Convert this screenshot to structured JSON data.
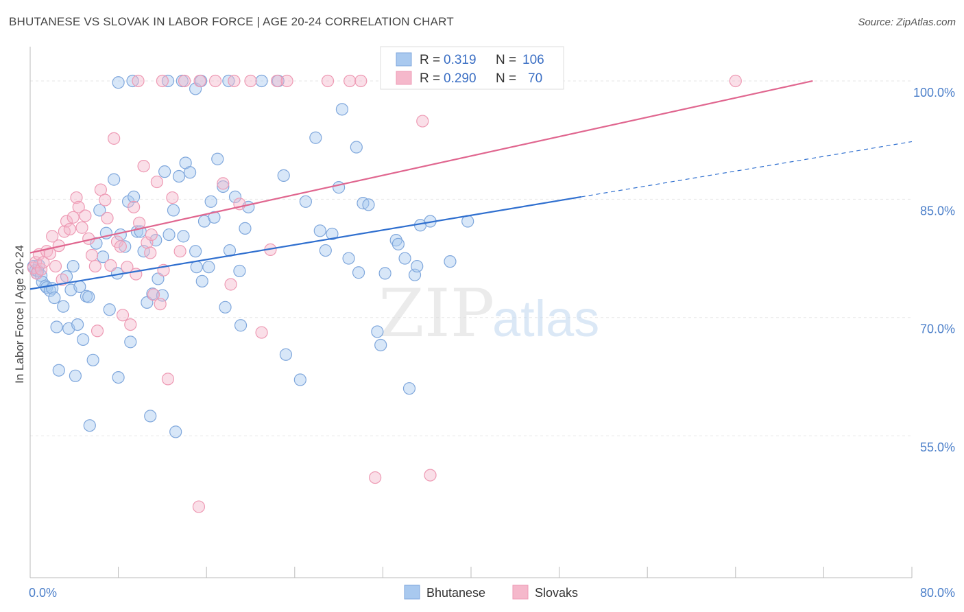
{
  "header": {
    "title": "BHUTANESE VS SLOVAK IN LABOR FORCE | AGE 20-24 CORRELATION CHART",
    "source": "Source: ZipAtlas.com"
  },
  "watermark": {
    "zip": "ZIP",
    "atlas": "atlas"
  },
  "legend_box": {
    "rows": [
      {
        "r_label": "R =",
        "r_value": "0.319",
        "n_label": "N =",
        "n_value": "106"
      },
      {
        "r_label": "R =",
        "r_value": "0.290",
        "n_label": "N =",
        "n_value": "70"
      }
    ]
  },
  "bottom_legend": {
    "items": [
      "Bhutanese",
      "Slovaks"
    ]
  },
  "colors": {
    "blue_fill": "#a9c9ef",
    "blue_stroke": "#7fa7dc",
    "blue_line": "#2f6fcf",
    "pink_fill": "#f5b8cb",
    "pink_stroke": "#ee9ab4",
    "pink_line": "#e0668f",
    "tick_text": "#4a7ec9",
    "grid": "#e6e6e6"
  },
  "chart_data": {
    "type": "scatter",
    "title": "BHUTANESE VS SLOVAK IN LABOR FORCE | AGE 20-24 CORRELATION CHART",
    "xlabel": "",
    "ylabel": "In Labor Force | Age 20-24",
    "xlim": [
      0,
      80
    ],
    "ylim": [
      37,
      104
    ],
    "x_tick_labels": [
      {
        "value": 0,
        "label": "0.0%"
      },
      {
        "value": 80,
        "label": "80.0%"
      }
    ],
    "y_tick_labels": [
      {
        "value": 100,
        "label": "100.0%"
      },
      {
        "value": 85,
        "label": "85.0%"
      },
      {
        "value": 70,
        "label": "70.0%"
      },
      {
        "value": 55,
        "label": "55.0%"
      }
    ],
    "grid": true,
    "legend_position": "top-center",
    "series": [
      {
        "name": "Bhutanese",
        "color": "#a9c9ef",
        "points": [
          [
            0.3,
            76.5
          ],
          [
            0.5,
            76
          ],
          [
            0.6,
            75.6
          ],
          [
            0.7,
            75.9
          ],
          [
            0.8,
            76.6
          ],
          [
            1.0,
            75.3
          ],
          [
            1.1,
            74.5
          ],
          [
            1.4,
            74.0
          ],
          [
            1.5,
            73.8
          ],
          [
            1.8,
            73.4
          ],
          [
            2.0,
            73.7
          ],
          [
            2.2,
            72.5
          ],
          [
            2.4,
            68.8
          ],
          [
            2.6,
            63.3
          ],
          [
            3.0,
            71.4
          ],
          [
            3.3,
            75.2
          ],
          [
            3.5,
            68.6
          ],
          [
            3.7,
            73.5
          ],
          [
            3.9,
            76.5
          ],
          [
            4.1,
            62.6
          ],
          [
            4.3,
            69.1
          ],
          [
            4.5,
            73.9
          ],
          [
            4.8,
            67.2
          ],
          [
            5.1,
            72.7
          ],
          [
            5.3,
            72.6
          ],
          [
            5.4,
            56.3
          ],
          [
            5.7,
            64.6
          ],
          [
            6.0,
            79.4
          ],
          [
            6.3,
            83.6
          ],
          [
            6.6,
            77.7
          ],
          [
            6.9,
            80.7
          ],
          [
            7.2,
            71.0
          ],
          [
            7.6,
            87.5
          ],
          [
            7.9,
            75.6
          ],
          [
            8.0,
            62.4
          ],
          [
            8.2,
            80.5
          ],
          [
            8.6,
            79.0
          ],
          [
            8.9,
            84.7
          ],
          [
            9.1,
            66.9
          ],
          [
            9.4,
            85.3
          ],
          [
            9.7,
            80.9
          ],
          [
            10.0,
            80.9
          ],
          [
            10.3,
            78.4
          ],
          [
            10.6,
            71.9
          ],
          [
            10.9,
            57.5
          ],
          [
            11.1,
            73.0
          ],
          [
            11.4,
            79.8
          ],
          [
            11.6,
            74.9
          ],
          [
            12.0,
            72.8
          ],
          [
            12.2,
            88.5
          ],
          [
            12.6,
            80.5
          ],
          [
            13.0,
            83.6
          ],
          [
            13.2,
            55.5
          ],
          [
            13.5,
            87.9
          ],
          [
            13.9,
            80.3
          ],
          [
            14.1,
            89.6
          ],
          [
            14.5,
            88.4
          ],
          [
            15.0,
            78.4
          ],
          [
            15.1,
            76.4
          ],
          [
            15.6,
            74.6
          ],
          [
            15.8,
            82.2
          ],
          [
            16.2,
            76.4
          ],
          [
            16.4,
            84.7
          ],
          [
            16.7,
            82.7
          ],
          [
            17.0,
            90.1
          ],
          [
            17.5,
            86.6
          ],
          [
            17.7,
            71.3
          ],
          [
            18.1,
            78.5
          ],
          [
            18.6,
            85.3
          ],
          [
            19.0,
            75.9
          ],
          [
            19.1,
            69.0
          ],
          [
            19.5,
            81.3
          ],
          [
            19.8,
            84.0
          ],
          [
            15.0,
            99.0
          ],
          [
            18.0,
            100.0
          ],
          [
            23.0,
            88.0
          ],
          [
            23.2,
            65.3
          ],
          [
            24.5,
            62.1
          ],
          [
            25.0,
            84.7
          ],
          [
            25.9,
            92.8
          ],
          [
            26.3,
            81.0
          ],
          [
            26.8,
            78.5
          ],
          [
            27.4,
            80.6
          ],
          [
            28.0,
            86.5
          ],
          [
            28.3,
            96.4
          ],
          [
            28.9,
            77.5
          ],
          [
            29.6,
            91.6
          ],
          [
            29.8,
            75.7
          ],
          [
            30.2,
            84.5
          ],
          [
            30.7,
            84.3
          ],
          [
            31.5,
            68.2
          ],
          [
            31.8,
            66.5
          ],
          [
            32.2,
            75.6
          ],
          [
            33.2,
            79.8
          ],
          [
            33.4,
            79.3
          ],
          [
            34.0,
            77.5
          ],
          [
            34.4,
            61.0
          ],
          [
            34.9,
            75.4
          ],
          [
            35.1,
            76.5
          ],
          [
            35.4,
            81.7
          ],
          [
            36.3,
            82.2
          ],
          [
            38.1,
            77.1
          ],
          [
            39.7,
            82.2
          ],
          [
            9.3,
            100.0
          ],
          [
            13.8,
            100.0
          ],
          [
            15.5,
            100.0
          ],
          [
            22.5,
            100.0
          ],
          [
            21.0,
            100.0
          ],
          [
            12.5,
            100.0
          ],
          [
            8.0,
            99.8
          ]
        ],
        "trendline": {
          "x": [
            0,
            50
          ],
          "y": [
            73.6,
            85.3
          ],
          "dashed_extension_to": [
            80,
            92.3
          ]
        }
      },
      {
        "name": "Slovaks",
        "color": "#f5b8cb",
        "points": [
          [
            0.3,
            76.3
          ],
          [
            0.5,
            77.0
          ],
          [
            0.6,
            75.6
          ],
          [
            0.8,
            78.0
          ],
          [
            1.0,
            76.1
          ],
          [
            1.2,
            77.0
          ],
          [
            1.5,
            78.4
          ],
          [
            1.8,
            78.1
          ],
          [
            2.0,
            80.3
          ],
          [
            2.3,
            76.5
          ],
          [
            2.6,
            79.1
          ],
          [
            2.9,
            74.8
          ],
          [
            3.1,
            80.9
          ],
          [
            3.3,
            82.2
          ],
          [
            3.6,
            81.2
          ],
          [
            3.9,
            82.7
          ],
          [
            4.2,
            85.2
          ],
          [
            4.4,
            84.0
          ],
          [
            4.7,
            81.4
          ],
          [
            5.0,
            82.9
          ],
          [
            5.3,
            80.0
          ],
          [
            5.6,
            77.9
          ],
          [
            5.9,
            76.5
          ],
          [
            6.1,
            68.3
          ],
          [
            6.4,
            86.2
          ],
          [
            6.8,
            84.9
          ],
          [
            7.0,
            82.6
          ],
          [
            7.3,
            76.6
          ],
          [
            7.6,
            92.7
          ],
          [
            7.9,
            79.6
          ],
          [
            8.2,
            79.0
          ],
          [
            8.4,
            70.3
          ],
          [
            8.8,
            76.4
          ],
          [
            9.1,
            69.1
          ],
          [
            9.4,
            84.0
          ],
          [
            9.6,
            75.5
          ],
          [
            9.9,
            82.0
          ],
          [
            10.3,
            89.2
          ],
          [
            10.6,
            79.5
          ],
          [
            10.9,
            78.2
          ],
          [
            11.2,
            72.9
          ],
          [
            11.5,
            87.2
          ],
          [
            11.8,
            71.7
          ],
          [
            12.1,
            76.0
          ],
          [
            12.5,
            62.2
          ],
          [
            12.9,
            85.2
          ],
          [
            14.0,
            100.0
          ],
          [
            15.4,
            100.0
          ],
          [
            16.8,
            100.0
          ],
          [
            17.5,
            87.0
          ],
          [
            18.2,
            74.2
          ],
          [
            19.0,
            84.4
          ],
          [
            21.0,
            68.1
          ],
          [
            21.8,
            78.6
          ],
          [
            22.4,
            100.0
          ],
          [
            23.3,
            100.0
          ],
          [
            27.0,
            100.0
          ],
          [
            29.0,
            100.0
          ],
          [
            30.0,
            100.0
          ],
          [
            35.6,
            94.9
          ],
          [
            36.3,
            50.0
          ],
          [
            31.3,
            49.7
          ],
          [
            15.3,
            46.0
          ],
          [
            64.0,
            100.0
          ],
          [
            20.0,
            100.0
          ],
          [
            12.0,
            100.0
          ],
          [
            18.5,
            100.0
          ],
          [
            13.6,
            78.4
          ],
          [
            11.0,
            80.5
          ],
          [
            9.8,
            100.0
          ]
        ],
        "trendline": {
          "x": [
            0,
            71
          ],
          "y": [
            78.2,
            100.0
          ]
        }
      }
    ]
  }
}
